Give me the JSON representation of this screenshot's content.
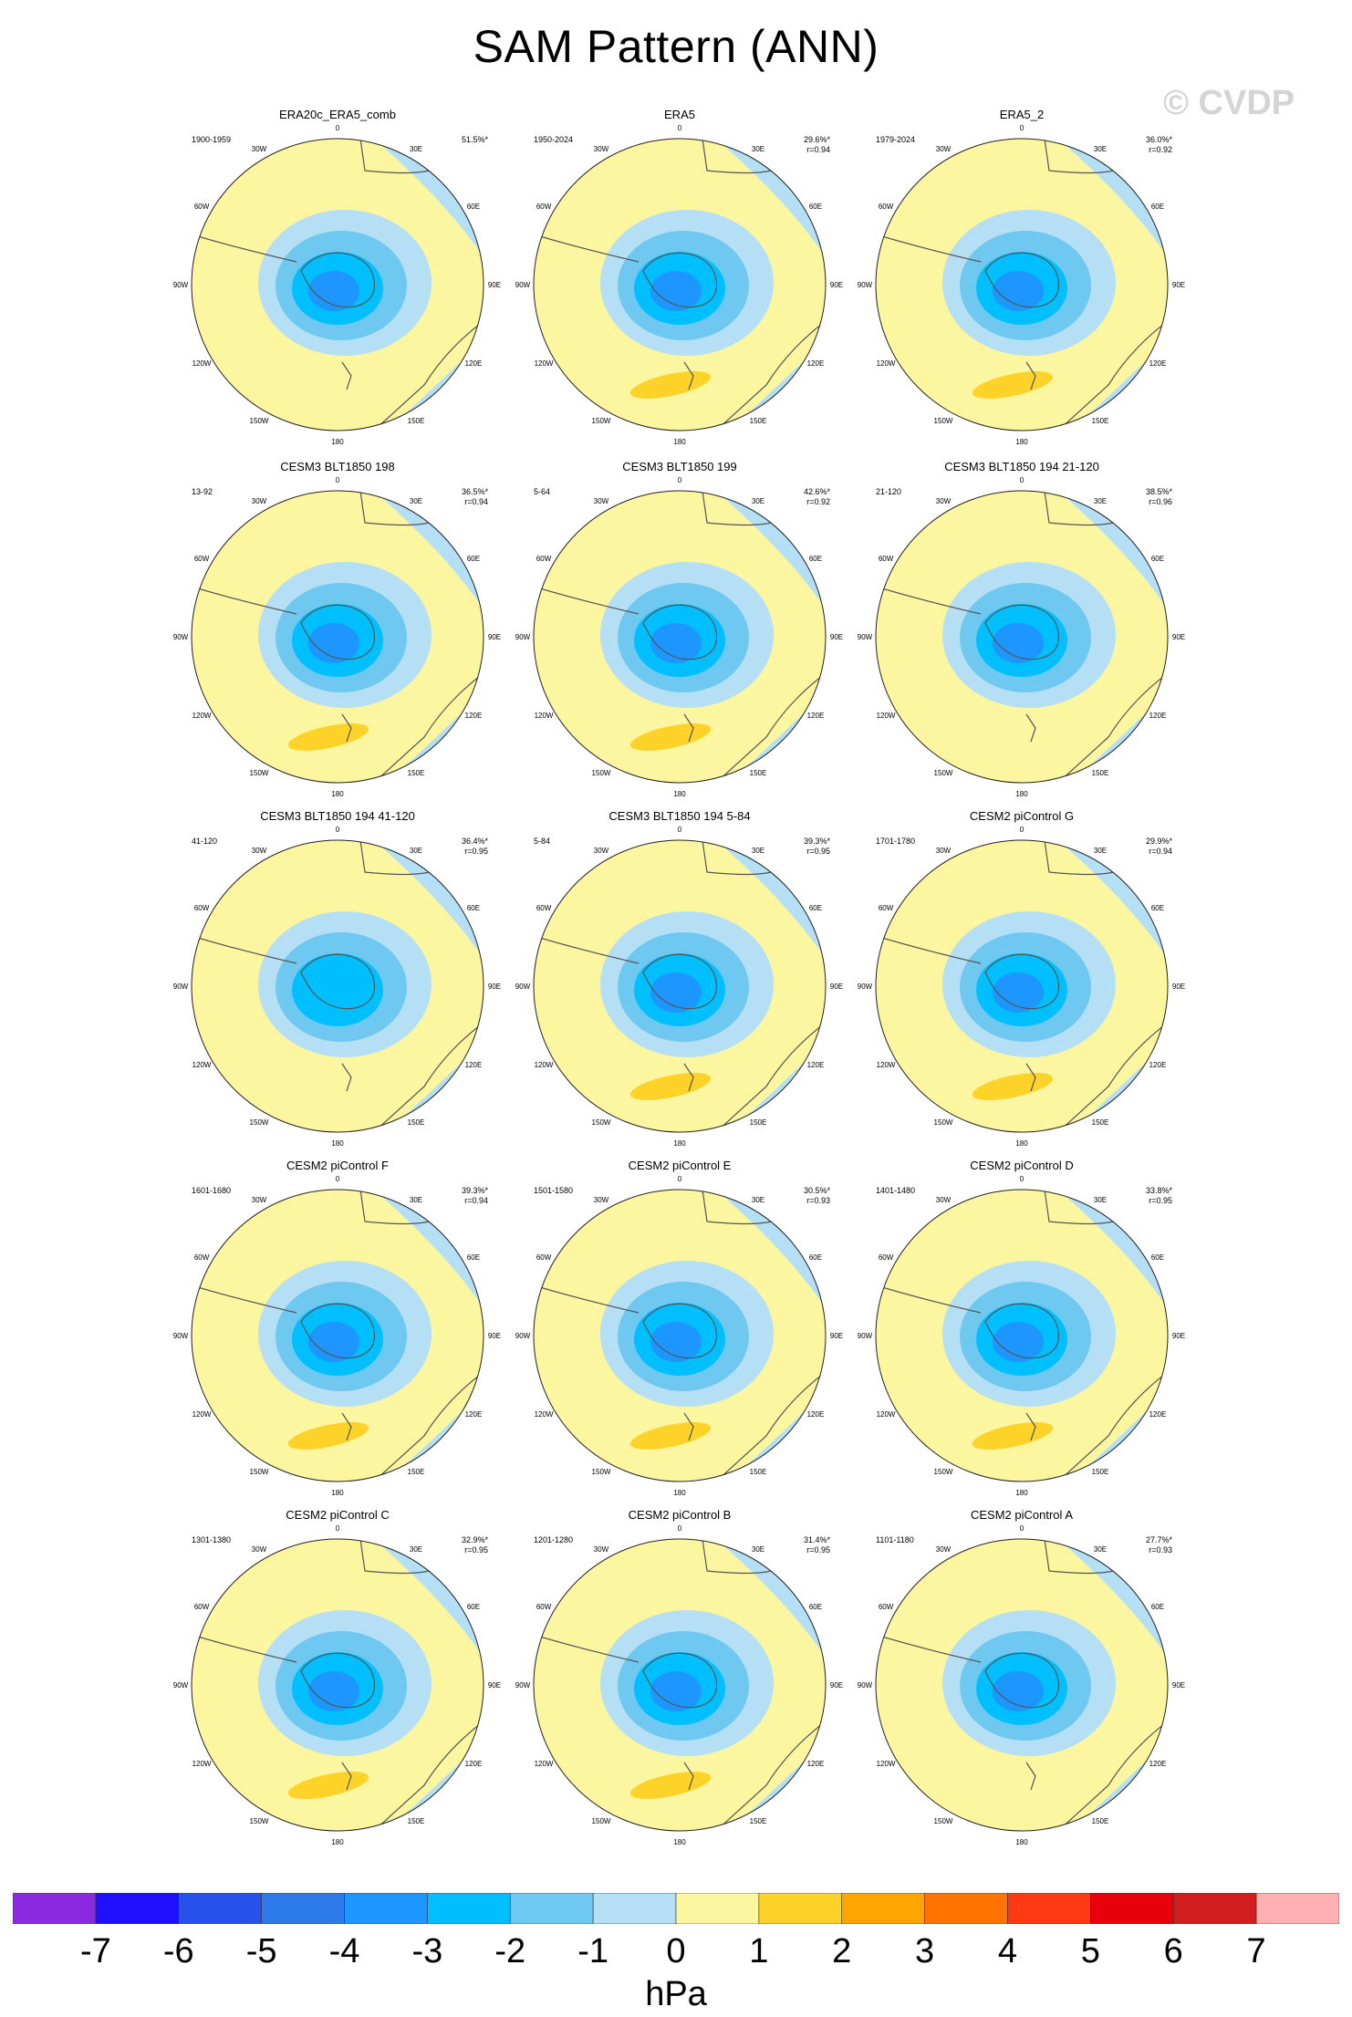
{
  "title": "SAM Pattern (ANN)",
  "watermark": "© CVDP",
  "units": "hPa",
  "longitude_labels": [
    "0",
    "30E",
    "60E",
    "90E",
    "120E",
    "150E",
    "180",
    "150W",
    "120W",
    "90W",
    "60W",
    "30W"
  ],
  "colorbar": {
    "ticks": [
      "-7",
      "-6",
      "-5",
      "-4",
      "-3",
      "-2",
      "-1",
      "0",
      "1",
      "2",
      "3",
      "4",
      "5",
      "6",
      "7"
    ],
    "colors": [
      "#8a2be2",
      "#1e10ff",
      "#2850ea",
      "#2d7aea",
      "#1e96ff",
      "#00bfff",
      "#6ec8f0",
      "#b4dff5",
      "#fdf6a0",
      "#fdd32a",
      "#ffa500",
      "#ff7300",
      "#ff3a12",
      "#e8000b",
      "#d21e1e",
      "#ffb0b3"
    ]
  },
  "map_colors": {
    "pos1": "#fdf6a0",
    "neg1": "#b4dff5",
    "neg2": "#6ec8f0",
    "neg3": "#00bfff",
    "neg4": "#1e96ff",
    "pos2": "#fdd32a",
    "coast": "#555555"
  },
  "panels": [
    {
      "title": "ERA20c_ERA5_comb",
      "years": "1900-1959",
      "pct": "51.5%*",
      "r": "",
      "intensity": 4,
      "pos2": false
    },
    {
      "title": "ERA5",
      "years": "1950-2024",
      "pct": "29.6%*",
      "r": "r=0.94",
      "intensity": 3,
      "pos2": true
    },
    {
      "title": "ERA5_2",
      "years": "1979-2024",
      "pct": "36.0%*",
      "r": "r=0.92",
      "intensity": 3,
      "pos2": true
    },
    {
      "title": "CESM3 BLT1850 198",
      "years": "13-92",
      "pct": "36.5%*",
      "r": "r=0.94",
      "intensity": 3,
      "pos2": true
    },
    {
      "title": "CESM3 BLT1850 199",
      "years": "5-64",
      "pct": "42.6%*",
      "r": "r=0.92",
      "intensity": 3,
      "pos2": true
    },
    {
      "title": "CESM3 BLT1850 194 21-120",
      "years": "21-120",
      "pct": "38.5%*",
      "r": "r=0.96",
      "intensity": 3,
      "pos2": false
    },
    {
      "title": "CESM3 BLT1850 194 41-120",
      "years": "41-120",
      "pct": "36.4%*",
      "r": "r=0.95",
      "intensity": 2,
      "pos2": false
    },
    {
      "title": "CESM3 BLT1850 194 5-84",
      "years": "5-84",
      "pct": "39.3%*",
      "r": "r=0.95",
      "intensity": 3,
      "pos2": true
    },
    {
      "title": "CESM2 piControl G",
      "years": "1701-1780",
      "pct": "29.9%*",
      "r": "r=0.94",
      "intensity": 3,
      "pos2": true
    },
    {
      "title": "CESM2 piControl F",
      "years": "1601-1680",
      "pct": "39.3%*",
      "r": "r=0.94",
      "intensity": 3,
      "pos2": true
    },
    {
      "title": "CESM2 piControl E",
      "years": "1501-1580",
      "pct": "30.5%*",
      "r": "r=0.93",
      "intensity": 3,
      "pos2": true
    },
    {
      "title": "CESM2 piControl D",
      "years": "1401-1480",
      "pct": "33.8%*",
      "r": "r=0.95",
      "intensity": 3,
      "pos2": true
    },
    {
      "title": "CESM2 piControl C",
      "years": "1301-1380",
      "pct": "32.9%*",
      "r": "r=0.95",
      "intensity": 3,
      "pos2": true
    },
    {
      "title": "CESM2 piControl B",
      "years": "1201-1280",
      "pct": "31.4%*",
      "r": "r=0.95",
      "intensity": 3,
      "pos2": true
    },
    {
      "title": "CESM2 piControl A",
      "years": "1101-1180",
      "pct": "27.7%*",
      "r": "r=0.93",
      "intensity": 3,
      "pos2": false
    }
  ]
}
